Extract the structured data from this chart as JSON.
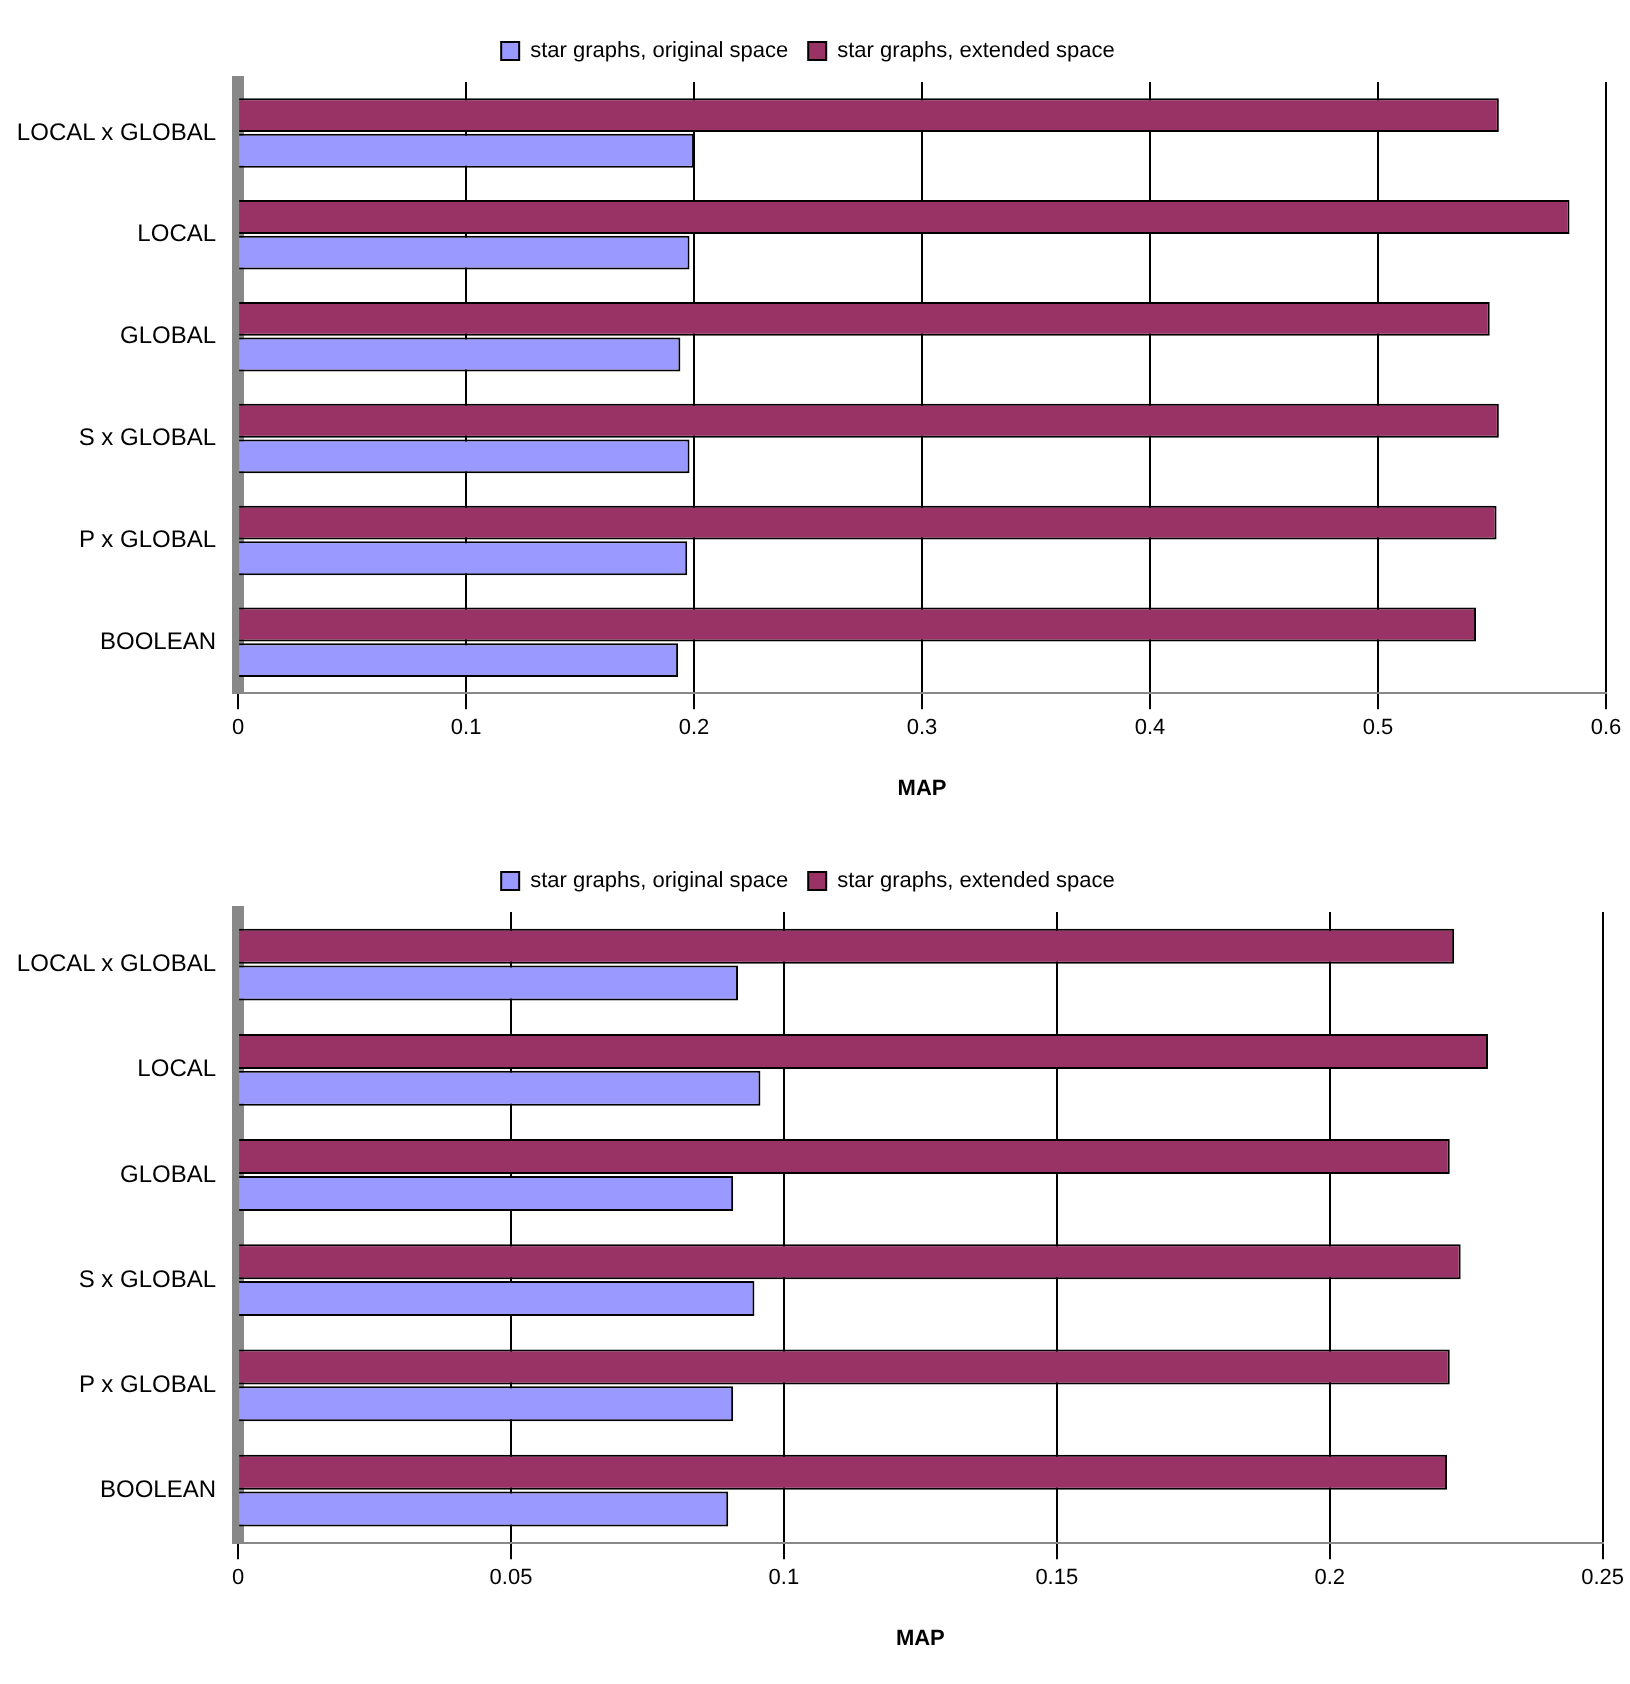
{
  "chart_data": [
    {
      "type": "bar",
      "orientation": "horizontal",
      "categories": [
        "LOCAL x GLOBAL",
        "LOCAL",
        "GLOBAL",
        "S x GLOBAL",
        "P x GLOBAL",
        "BOOLEAN"
      ],
      "series": [
        {
          "name": "star graphs, original space",
          "color": "#9999ff",
          "values": [
            0.2,
            0.198,
            0.194,
            0.198,
            0.197,
            0.193
          ]
        },
        {
          "name": "star graphs, extended space",
          "color": "#993366",
          "values": [
            0.553,
            0.584,
            0.549,
            0.553,
            0.552,
            0.543
          ]
        }
      ],
      "xlabel": "MAP",
      "xlim": [
        0,
        0.6
      ],
      "xticks": [
        0,
        0.1,
        0.2,
        0.3,
        0.4,
        0.5,
        0.6
      ],
      "grid": "x",
      "legend": "top"
    },
    {
      "type": "bar",
      "orientation": "horizontal",
      "categories": [
        "LOCAL x GLOBAL",
        "LOCAL",
        "GLOBAL",
        "S x GLOBAL",
        "P x GLOBAL",
        "BOOLEAN"
      ],
      "series": [
        {
          "name": "star graphs, original space",
          "color": "#9999ff",
          "values": [
            0.0916,
            0.0957,
            0.0907,
            0.0946,
            0.0907,
            0.0898
          ]
        },
        {
          "name": "star graphs, extended space",
          "color": "#993366",
          "values": [
            0.2228,
            0.229,
            0.222,
            0.224,
            0.222,
            0.2215
          ]
        }
      ],
      "xlabel": "MAP",
      "xlim": [
        0,
        0.25
      ],
      "xticks": [
        0,
        0.05,
        0.1,
        0.15,
        0.2,
        0.25
      ],
      "grid": "x",
      "legend": "top"
    }
  ]
}
